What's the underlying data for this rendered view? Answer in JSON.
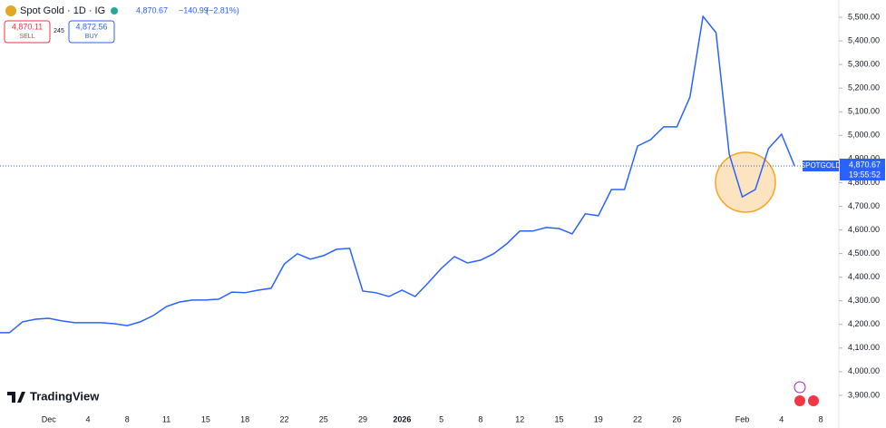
{
  "header": {
    "symbol": "Spot Gold · 1D · IG",
    "change": "−140.99",
    "change_pct": "(−2.81%)",
    "sell_price": "4,870.11",
    "sell_label": "SELL",
    "spread": "245",
    "buy_price": "4,872.56",
    "buy_label": "BUY",
    "logo": "TradingView"
  },
  "chart_data": {
    "type": "line",
    "last_price": {
      "value": 4870.67,
      "label": "4,870.67",
      "symbol": "SPOTGOLD",
      "time": "19:55:52"
    },
    "categories": [
      null,
      null,
      null,
      null,
      "Dec",
      null,
      null,
      "4",
      null,
      null,
      "8",
      null,
      null,
      "11",
      null,
      null,
      "15",
      null,
      null,
      "18",
      null,
      null,
      "22",
      null,
      null,
      "25",
      null,
      null,
      "29",
      null,
      null,
      "2026",
      null,
      null,
      "5",
      null,
      null,
      "8",
      null,
      null,
      "12",
      null,
      null,
      "15",
      null,
      null,
      "19",
      null,
      null,
      "22",
      null,
      null,
      "26",
      null,
      null,
      null,
      null,
      "Feb",
      null,
      null,
      "4",
      null,
      null,
      "8"
    ],
    "series": [
      {
        "name": "SPOTGOLD",
        "color": "#2962ff",
        "values": [
          4165,
          4165,
          4211,
          4222,
          4226,
          4215,
          4207,
          4207,
          4207,
          4203,
          4195,
          4211,
          4238,
          4276,
          4295,
          4303,
          4303,
          4307,
          4337,
          4334,
          4345,
          4353,
          4456,
          4499,
          4476,
          4491,
          4518,
          4522,
          4341,
          4334,
          4318,
          4345,
          4318,
          4376,
          4437,
          4487,
          4460,
          4472,
          4499,
          4541,
          4595,
          4595,
          4610,
          4606,
          4583,
          4668,
          4660,
          4771,
          4771,
          4955,
          4982,
          5036,
          5036,
          5162,
          5504,
          5435,
          4921,
          4740,
          4771,
          4944,
          5005,
          4870.67,
          null,
          null
        ]
      }
    ],
    "ylim": [
      3846,
      5573
    ],
    "yticks": [
      {
        "value": 3900,
        "label": "3,900.00"
      },
      {
        "value": 4000,
        "label": "4,000.00"
      },
      {
        "value": 4100,
        "label": "4,100.00"
      },
      {
        "value": 4200,
        "label": "4,200.00"
      },
      {
        "value": 4300,
        "label": "4,300.00"
      },
      {
        "value": 4400,
        "label": "4,400.00"
      },
      {
        "value": 4500,
        "label": "4,500.00"
      },
      {
        "value": 4600,
        "label": "4,600.00"
      },
      {
        "value": 4700,
        "label": "4,700.00"
      },
      {
        "value": 4800,
        "label": "4,800.00"
      },
      {
        "value": 4900,
        "label": "4,900.00"
      },
      {
        "value": 5000,
        "label": "5,000.00"
      },
      {
        "value": 5100,
        "label": "5,100.00"
      },
      {
        "value": 5200,
        "label": "5,200.00"
      },
      {
        "value": 5300,
        "label": "5,300.00"
      },
      {
        "value": 5400,
        "label": "5,400.00"
      },
      {
        "value": 5500,
        "label": "5,500.00"
      }
    ]
  }
}
